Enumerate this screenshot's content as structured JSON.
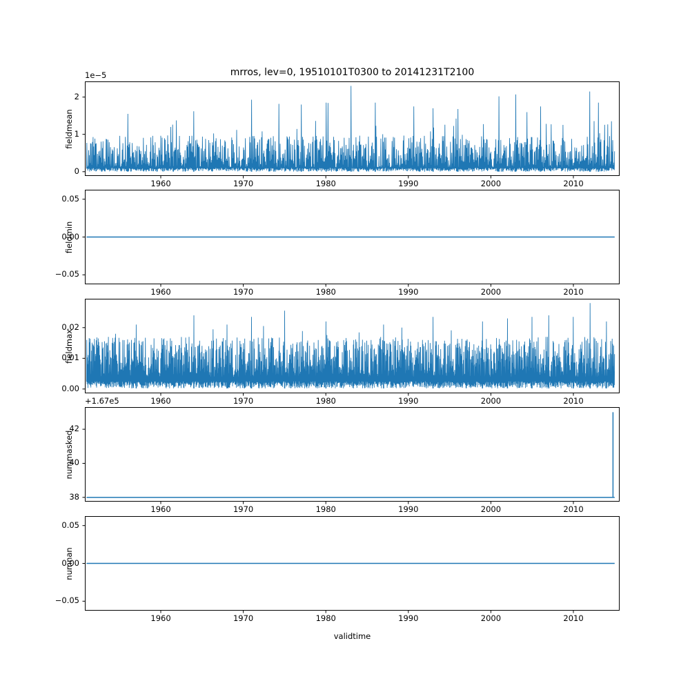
{
  "figure": {
    "title": "mrros, lev=0, 19510101T0300 to 20141231T2100",
    "xlabel": "validtime",
    "line_color": "#1f77b4",
    "background": "#ffffff"
  },
  "chart_data": [
    {
      "type": "line",
      "name": "fieldmean",
      "ylabel": "fieldmean",
      "offset_text": "1e−5",
      "value_note": "y values in units of 1e-5",
      "x_range": [
        1951,
        2015
      ],
      "xlim": [
        1950.8,
        2015.6
      ],
      "xticks": [
        1960,
        1970,
        1980,
        1990,
        2000,
        2010
      ],
      "ylim": [
        -0.115,
        2.42
      ],
      "yticks": [
        0,
        1,
        2
      ],
      "ytick_labels": [
        "0",
        "1",
        "2"
      ],
      "color": "#1f77b4",
      "series": {
        "kind": "noisy-spikes",
        "n_points": 1700,
        "low_min": 0.0,
        "low_max": 0.1,
        "peak_base": 0.12,
        "peak_span": 0.85,
        "peak_pow": 1.4,
        "spike_prob": 0.05,
        "spike_extra": 1.1,
        "max_value": 2.3,
        "notable_peaks": [
          {
            "year": 1956,
            "value": 1.55
          },
          {
            "year": 1964,
            "value": 1.62
          },
          {
            "year": 1971,
            "value": 1.93
          },
          {
            "year": 1977,
            "value": 1.8
          },
          {
            "year": 1980,
            "value": 1.85
          },
          {
            "year": 1983,
            "value": 2.3
          },
          {
            "year": 1986,
            "value": 1.85
          },
          {
            "year": 1993,
            "value": 1.7
          },
          {
            "year": 1996,
            "value": 1.68
          },
          {
            "year": 2001,
            "value": 2.02
          },
          {
            "year": 2003,
            "value": 2.07
          },
          {
            "year": 2006,
            "value": 1.75
          },
          {
            "year": 2012,
            "value": 2.15
          },
          {
            "year": 2013,
            "value": 1.85
          }
        ]
      }
    },
    {
      "type": "line",
      "name": "fieldmin",
      "ylabel": "fieldmin",
      "x_range": [
        1951,
        2015
      ],
      "xlim": [
        1950.8,
        2015.6
      ],
      "xticks": [
        1960,
        1970,
        1980,
        1990,
        2000,
        2010
      ],
      "ylim": [
        -0.0625,
        0.0625
      ],
      "yticks": [
        -0.05,
        0,
        0.05
      ],
      "ytick_labels": [
        "−0.05",
        "0.00",
        "0.05"
      ],
      "color": "#1f77b4",
      "series": {
        "kind": "constant",
        "value": 0
      }
    },
    {
      "type": "line",
      "name": "fieldmax",
      "ylabel": "fieldmax",
      "x_range": [
        1951,
        2015
      ],
      "xlim": [
        1950.8,
        2015.6
      ],
      "xticks": [
        1960,
        1970,
        1980,
        1990,
        2000,
        2010
      ],
      "ylim": [
        -0.0014,
        0.0294
      ],
      "yticks": [
        0,
        0.01,
        0.02
      ],
      "ytick_labels": [
        "0.00",
        "0.01",
        "0.02"
      ],
      "color": "#1f77b4",
      "series": {
        "kind": "noisy-spikes",
        "n_points": 2200,
        "low_min": 0.0002,
        "low_max": 0.0025,
        "peak_base": 0.004,
        "peak_span": 0.013,
        "peak_pow": 1.2,
        "spike_prob": 0.03,
        "spike_extra": 0.007,
        "max_value": 0.0285,
        "notable_peaks": [
          {
            "year": 1957,
            "value": 0.021
          },
          {
            "year": 1964,
            "value": 0.024
          },
          {
            "year": 1968,
            "value": 0.021
          },
          {
            "year": 1971,
            "value": 0.0235
          },
          {
            "year": 1975,
            "value": 0.0255
          },
          {
            "year": 1980,
            "value": 0.022
          },
          {
            "year": 1987,
            "value": 0.021
          },
          {
            "year": 1993,
            "value": 0.0235
          },
          {
            "year": 1999,
            "value": 0.022
          },
          {
            "year": 2002,
            "value": 0.023
          },
          {
            "year": 2005,
            "value": 0.0235
          },
          {
            "year": 2007,
            "value": 0.024
          },
          {
            "year": 2010,
            "value": 0.0235
          },
          {
            "year": 2012,
            "value": 0.028
          },
          {
            "year": 2014,
            "value": 0.022
          }
        ]
      }
    },
    {
      "type": "line",
      "name": "nummasked",
      "ylabel": "nummasked",
      "offset_text": "+1.67e5",
      "value_note": "plotted values offset by +1.67e5; flat at 167038 with single spike to 167043 near end of 2014",
      "x_range": [
        1951,
        2015
      ],
      "xlim": [
        1950.8,
        2015.6
      ],
      "xticks": [
        1960,
        1970,
        1980,
        1990,
        2000,
        2010
      ],
      "ylim": [
        37.75,
        43.3
      ],
      "yticks": [
        38,
        40,
        42
      ],
      "ytick_labels": [
        "38",
        "40",
        "42"
      ],
      "color": "#1f77b4",
      "series": {
        "kind": "constant-with-spike",
        "value": 38,
        "spike_value": 43,
        "spike_year": 2014.8,
        "absolute_base": 167038,
        "absolute_spike": 167043
      }
    },
    {
      "type": "line",
      "name": "numnan",
      "ylabel": "numnan",
      "x_range": [
        1951,
        2015
      ],
      "xlim": [
        1950.8,
        2015.6
      ],
      "xticks": [
        1960,
        1970,
        1980,
        1990,
        2000,
        2010
      ],
      "ylim": [
        -0.0625,
        0.0625
      ],
      "yticks": [
        -0.05,
        0,
        0.05
      ],
      "ytick_labels": [
        "−0.05",
        "0.00",
        "0.05"
      ],
      "color": "#1f77b4",
      "series": {
        "kind": "constant",
        "value": 0
      }
    }
  ]
}
